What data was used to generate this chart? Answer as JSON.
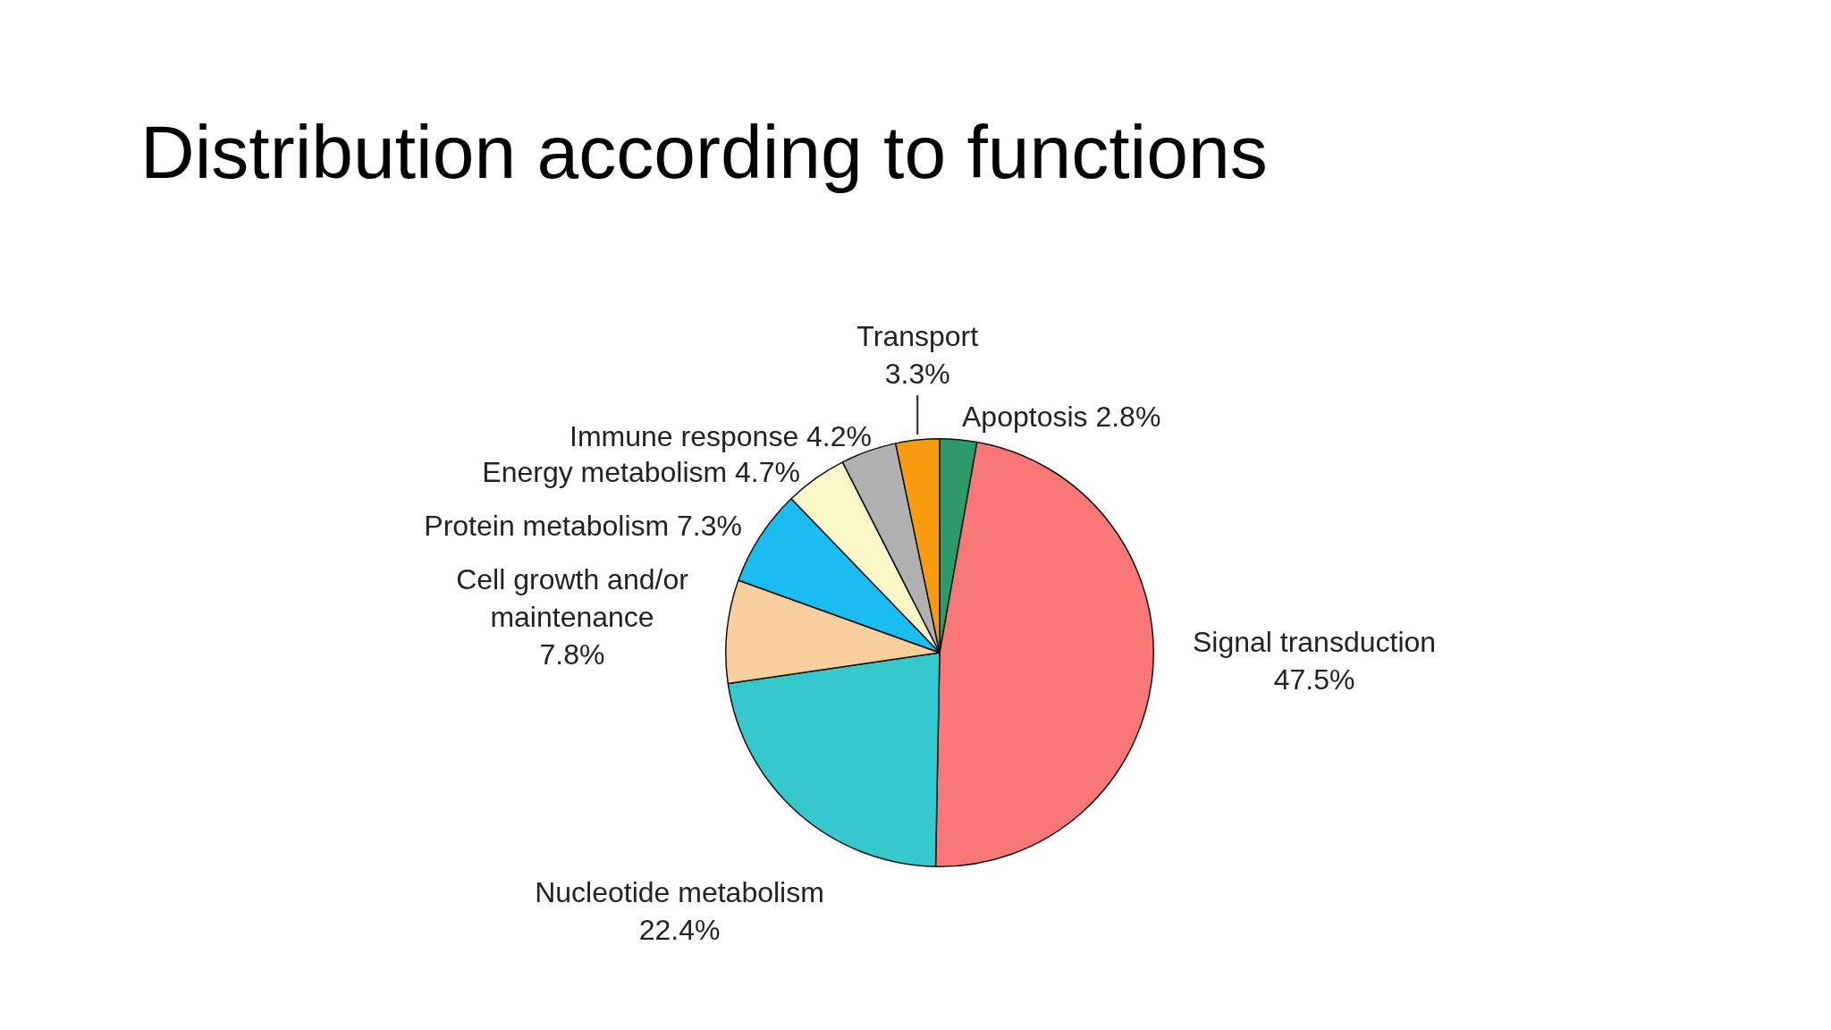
{
  "chart_data": {
    "type": "pie",
    "title": "Distribution according to functions",
    "categories": [
      "Apoptosis",
      "Signal transduction",
      "Nucleotide metabolism",
      "Cell growth and/or maintenance",
      "Protein metabolism",
      "Energy metabolism",
      "Immune response",
      "Transport"
    ],
    "values": [
      2.8,
      47.5,
      22.4,
      7.8,
      7.3,
      4.7,
      4.2,
      3.3
    ],
    "colors": [
      "#2e9a6a",
      "#f87878",
      "#35c8cc",
      "#f9cfa0",
      "#1bbdf0",
      "#fbf7c8",
      "#b0b0b0",
      "#f99b10"
    ],
    "value_labels": [
      "2.8%",
      "47.5%",
      "22.4%",
      "7.8%",
      "7.3%",
      "4.7%",
      "4.2%",
      "3.3%"
    ]
  }
}
